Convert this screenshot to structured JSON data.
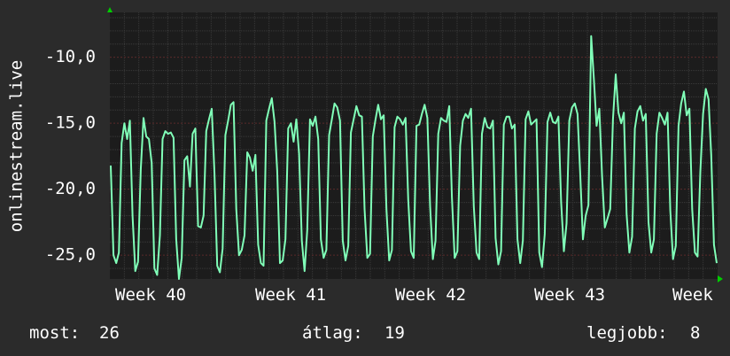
{
  "chart_data": {
    "type": "line",
    "title": "",
    "ylabel": "onlinestream.live",
    "xlabel": "",
    "y_ticks": [
      "-10,0",
      "-15,0",
      "-20,0",
      "-25,0"
    ],
    "y_tick_values": [
      -10,
      -15,
      -20,
      -25
    ],
    "x_ticks": [
      "Week 40",
      "Week 41",
      "Week 42",
      "Week 43",
      "Week"
    ],
    "ylim": [
      -26.8,
      -6.6
    ],
    "grid": true,
    "series": [
      {
        "color": "#80ffb8",
        "values": [
          -18.2,
          -25,
          -25.6,
          -24.8,
          -16.5,
          -15,
          -16.2,
          -14.8,
          -22,
          -26.2,
          -25.5,
          -18.5,
          -14.6,
          -16,
          -16.2,
          -18,
          -26,
          -26.5,
          -23.5,
          -16.2,
          -15.6,
          -15.8,
          -15.7,
          -16.1,
          -23.8,
          -26.8,
          -25.2,
          -17.8,
          -17.5,
          -19.8,
          -15.8,
          -15.4,
          -22.8,
          -22.9,
          -22,
          -15.6,
          -14.7,
          -13.9,
          -18.8,
          -25.8,
          -26.3,
          -24.5,
          -15.9,
          -14.8,
          -13.6,
          -13.4,
          -21.5,
          -25,
          -24.6,
          -23.5,
          -17.2,
          -17.6,
          -18.6,
          -17.4,
          -24.2,
          -25.6,
          -25.8,
          -14.8,
          -13.9,
          -13.1,
          -14.9,
          -18.6,
          -25.6,
          -25.4,
          -23.8,
          -15.4,
          -15,
          -16.4,
          -14.7,
          -17.3,
          -23.9,
          -26.2,
          -23.1,
          -14.7,
          -15.2,
          -14.5,
          -16.2,
          -23.8,
          -25.2,
          -24.6,
          -15.9,
          -14.7,
          -13.5,
          -13.8,
          -14.8,
          -23.9,
          -25.4,
          -24.3,
          -15.7,
          -14.7,
          -13.7,
          -14.4,
          -14.5,
          -21.5,
          -25.2,
          -24.9,
          -16,
          -14.7,
          -13.6,
          -14.7,
          -14.4,
          -21.5,
          -25.4,
          -24.6,
          -15.3,
          -14.5,
          -14.7,
          -15.1,
          -14.6,
          -20.8,
          -24.7,
          -25.2,
          -15.2,
          -15.1,
          -14.3,
          -13.6,
          -14.6,
          -21.3,
          -25.3,
          -23.9,
          -15.8,
          -14.6,
          -14.8,
          -14.9,
          -13.7,
          -20.6,
          -25.2,
          -24.7,
          -16.7,
          -14.8,
          -14.3,
          -14.6,
          -13.9,
          -21.3,
          -24.8,
          -25.3,
          -15.8,
          -14.6,
          -15.3,
          -15.4,
          -14.8,
          -23.7,
          -25.7,
          -24.7,
          -15.1,
          -14.5,
          -14.5,
          -15.4,
          -15.1,
          -23.8,
          -25.6,
          -23.9,
          -14.7,
          -14.1,
          -15.1,
          -14.9,
          -14.7,
          -24.8,
          -25.9,
          -23.4,
          -14.9,
          -14.2,
          -14.9,
          -15,
          -14.5,
          -21,
          -24.7,
          -22.6,
          -14.8,
          -13.8,
          -13.5,
          -14.3,
          -18.8,
          -23.8,
          -22,
          -21.2,
          -8.4,
          -11.7,
          -15.2,
          -13.9,
          -19,
          -22.9,
          -22.2,
          -21.5,
          -14.7,
          -11.3,
          -14.2,
          -15,
          -14.2,
          -21.9,
          -24.8,
          -23.6,
          -15.4,
          -14.1,
          -13.7,
          -14.8,
          -14.3,
          -22.5,
          -24.8,
          -23.8,
          -15.8,
          -14.2,
          -14.6,
          -15.1,
          -14.2,
          -21.6,
          -25.3,
          -24.3,
          -15.2,
          -13.5,
          -12.6,
          -14.4,
          -13.9,
          -21.5,
          -24.8,
          -25.1,
          -18.7,
          -14.3,
          -12.4,
          -13.2,
          -17.4,
          -24.2,
          -25.6
        ]
      }
    ],
    "stats": {
      "now_label": "most:",
      "now_value": "26",
      "avg_label": "átlag:",
      "avg_value": "19",
      "best_label": "legjobb:",
      "best_value": "8"
    },
    "colors": {
      "background": "#2b2b2b",
      "plot_background": "#1c1c1c",
      "grid_minor": "#3a3a3a",
      "grid_major": "#5a2a2a",
      "line": "#80ffb8",
      "axis_arrow": "#00cc00"
    }
  }
}
